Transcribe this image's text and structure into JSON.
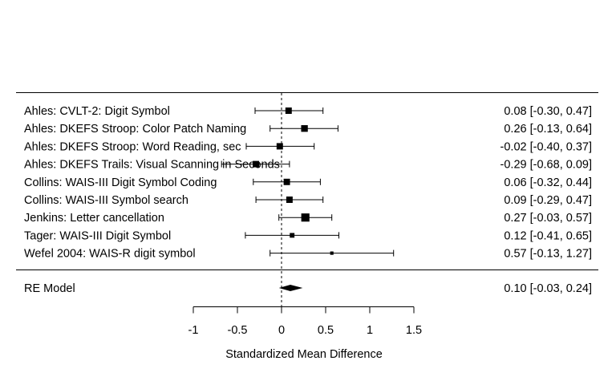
{
  "chart_data": {
    "type": "forest",
    "xlabel": "Standardized Mean Difference",
    "x_ticks": [
      -1,
      -0.5,
      0,
      0.5,
      1,
      1.5
    ],
    "x_tick_labels": [
      "-1",
      "-0.5",
      "0",
      "0.5",
      "1",
      "1.5"
    ],
    "xlim": [
      -1,
      1.5
    ],
    "reference_line": 0,
    "studies": [
      {
        "label": "Ahles: CVLT-2: Digit Symbol",
        "estimate": 0.08,
        "ci_low": -0.3,
        "ci_high": 0.47,
        "ci_text": "0.08 [-0.30, 0.47]",
        "weight": 0.11
      },
      {
        "label": "Ahles: DKEFS Stroop: Color Patch Naming",
        "estimate": 0.26,
        "ci_low": -0.13,
        "ci_high": 0.64,
        "ci_text": "0.26 [-0.13, 0.64]",
        "weight": 0.12
      },
      {
        "label": "Ahles: DKEFS Stroop: Word Reading, sec",
        "estimate": -0.02,
        "ci_low": -0.4,
        "ci_high": 0.37,
        "ci_text": "-0.02 [-0.40, 0.37]",
        "weight": 0.11
      },
      {
        "label": "Ahles: DKEFS Trails: Visual Scanning in Seconds",
        "estimate": -0.29,
        "ci_low": -0.68,
        "ci_high": 0.09,
        "ci_text": "-0.29 [-0.68, 0.09]",
        "weight": 0.11
      },
      {
        "label": "Collins: WAIS-III Digit Symbol Coding",
        "estimate": 0.06,
        "ci_low": -0.32,
        "ci_high": 0.44,
        "ci_text": "0.06 [-0.32, 0.44]",
        "weight": 0.11
      },
      {
        "label": "Collins: WAIS-III Symbol search",
        "estimate": 0.09,
        "ci_low": -0.29,
        "ci_high": 0.47,
        "ci_text": "0.09 [-0.29, 0.47]",
        "weight": 0.11
      },
      {
        "label": "Jenkins: Letter cancellation",
        "estimate": 0.27,
        "ci_low": -0.03,
        "ci_high": 0.57,
        "ci_text": "0.27 [-0.03, 0.57]",
        "weight": 0.18
      },
      {
        "label": "Tager: WAIS-III Digit Symbol",
        "estimate": 0.12,
        "ci_low": -0.41,
        "ci_high": 0.65,
        "ci_text": "0.12 [-0.41, 0.65]",
        "weight": 0.06
      },
      {
        "label": "Wefel 2004: WAIS-R digit symbol",
        "estimate": 0.57,
        "ci_low": -0.13,
        "ci_high": 1.27,
        "ci_text": "0.57 [-0.13, 1.27]",
        "weight": 0.03
      }
    ],
    "summary": {
      "label": "RE Model",
      "estimate": 0.1,
      "ci_low": -0.03,
      "ci_high": 0.24,
      "ci_text": "0.10 [-0.03, 0.24]"
    }
  }
}
